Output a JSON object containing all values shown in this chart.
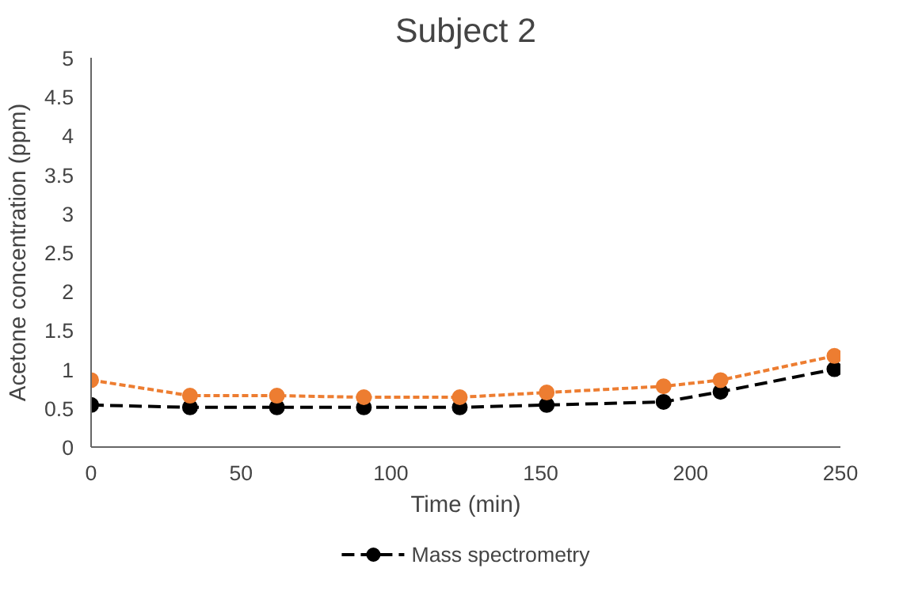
{
  "chart_data": {
    "type": "line",
    "title": "Subject 2",
    "xlabel": "Time (min)",
    "ylabel": "Acetone concentration (ppm)",
    "x": [
      0,
      33,
      62,
      91,
      123,
      152,
      191,
      210,
      248
    ],
    "series": [
      {
        "name": "Mass spectrometry",
        "color": "#000000",
        "line_style": "dashed",
        "values": [
          0.54,
          0.51,
          0.51,
          0.51,
          0.51,
          0.54,
          0.58,
          0.71,
          1.0
        ]
      },
      {
        "color": "#ed7d31",
        "line_style": "dotted",
        "values": [
          0.86,
          0.66,
          0.66,
          0.64,
          0.64,
          0.7,
          0.78,
          0.86,
          1.17
        ]
      }
    ],
    "xlim": [
      0,
      250
    ],
    "xticks": [
      0,
      50,
      100,
      150,
      200,
      250
    ],
    "ylim": [
      0,
      5
    ],
    "yticks": [
      0,
      0.5,
      1,
      1.5,
      2,
      2.5,
      3,
      3.5,
      4,
      4.5,
      5
    ],
    "grid": false,
    "legend": "bottom",
    "marker": "circle"
  }
}
